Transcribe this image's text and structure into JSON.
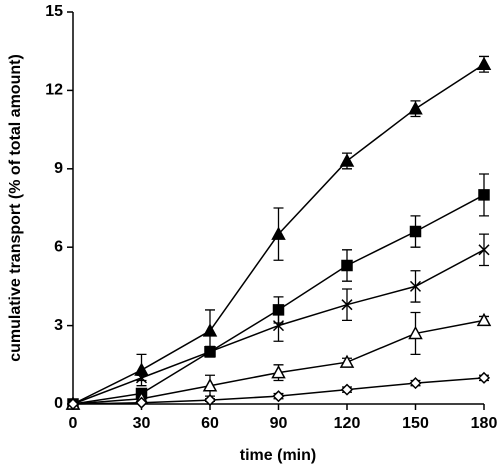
{
  "chart_data": {
    "type": "line",
    "x_label": "time (min)",
    "y_label": "cumulative transport (% of total amount)",
    "x": [
      0,
      30,
      60,
      90,
      120,
      150,
      180
    ],
    "xlim": [
      0,
      180
    ],
    "xticks": [
      0,
      30,
      60,
      90,
      120,
      150,
      180
    ],
    "ylim": [
      0,
      15
    ],
    "yticks": [
      0,
      3,
      6,
      9,
      12,
      15
    ],
    "grid": false,
    "series": [
      {
        "color": "#000000",
        "marker": "triangle",
        "filled": true,
        "values": [
          0,
          1.3,
          2.8,
          6.5,
          9.3,
          11.3,
          13.0
        ],
        "errors": [
          0,
          0.6,
          0.8,
          1.0,
          0.3,
          0.3,
          0.3
        ]
      },
      {
        "color": "#000000",
        "marker": "square",
        "filled": true,
        "values": [
          0,
          0.4,
          2.0,
          3.6,
          5.3,
          6.6,
          8.0
        ],
        "errors": [
          0,
          0.1,
          0.2,
          0.5,
          0.6,
          0.6,
          0.8
        ]
      },
      {
        "color": "#000000",
        "marker": "x",
        "filled": false,
        "values": [
          0,
          1.0,
          2.0,
          3.0,
          3.8,
          4.5,
          5.9
        ],
        "errors": [
          0,
          0.1,
          0.2,
          0.6,
          0.6,
          0.6,
          0.6
        ]
      },
      {
        "color": "#000000",
        "marker": "triangle",
        "filled": false,
        "values": [
          0,
          0.2,
          0.7,
          1.2,
          1.6,
          2.7,
          3.2
        ],
        "errors": [
          0,
          0.05,
          0.4,
          0.3,
          0.15,
          0.8,
          0.15
        ]
      },
      {
        "color": "#000000",
        "marker": "diamond",
        "filled": false,
        "values": [
          0,
          0.05,
          0.15,
          0.3,
          0.55,
          0.8,
          1.0
        ],
        "errors": [
          0,
          0.02,
          0.05,
          0.1,
          0.1,
          0.1,
          0.1
        ]
      }
    ]
  }
}
